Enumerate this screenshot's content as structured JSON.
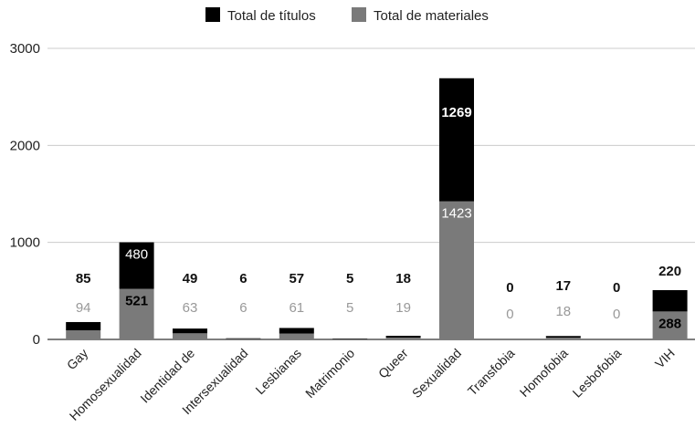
{
  "chart_data": {
    "type": "bar",
    "stacked": true,
    "categories": [
      "Gay",
      "Homosexualidad",
      "Identidad de",
      "Intersexualidad",
      "Lesbianas",
      "Matrimonio",
      "Queer",
      "Sexualidad",
      "Transfobia",
      "Homofobia",
      "Lesbofobia",
      "VIH"
    ],
    "series": [
      {
        "name": "Total de materiales",
        "color": "#7a7a7a",
        "values": [
          94,
          521,
          63,
          6,
          61,
          5,
          19,
          1423,
          0,
          18,
          0,
          288
        ]
      },
      {
        "name": "Total de títulos",
        "color": "#000000",
        "values": [
          85,
          480,
          49,
          6,
          57,
          5,
          18,
          1269,
          0,
          17,
          0,
          220
        ]
      }
    ],
    "y_ticks": [
      "0",
      "1000",
      "2000",
      "3000"
    ],
    "ylim": [
      0,
      3000
    ],
    "grid": true,
    "legend_position": "top-center",
    "title": "",
    "xlabel": "",
    "ylabel": ""
  }
}
